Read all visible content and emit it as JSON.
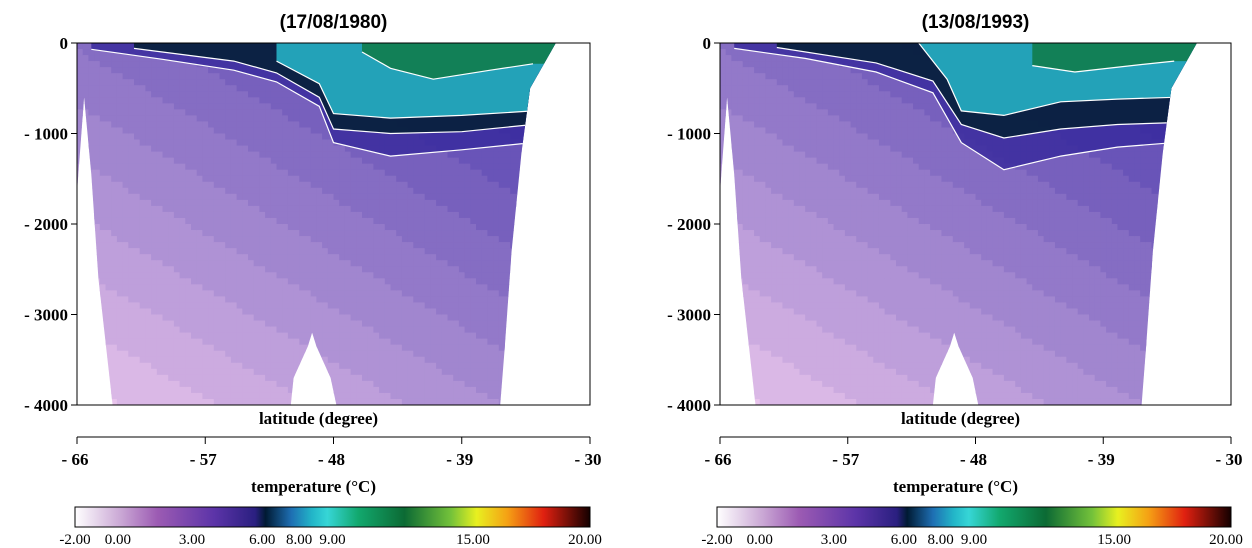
{
  "chart_data": [
    {
      "type": "heatmap",
      "title": "(17/08/1980)",
      "xlabel": "latitude (degree)",
      "ylabel": "",
      "x_ticks": [
        -66,
        -57,
        -48,
        -39,
        -30
      ],
      "x_tick_labels": [
        "- 66",
        "- 57",
        "- 48",
        "- 39",
        "- 30"
      ],
      "y_ticks": [
        0,
        1000,
        2000,
        3000,
        4000
      ],
      "y_tick_labels": [
        "0",
        "- 1000",
        "- 2000",
        "- 3000",
        "- 4000"
      ],
      "xlim": [
        -66,
        -30
      ],
      "ylim": [
        0,
        4000
      ],
      "colorbar": {
        "label": "temperature (°C)",
        "ticks": [
          -2,
          0,
          3,
          6,
          8,
          9,
          15,
          20
        ],
        "tick_labels": [
          "-2.00",
          "0.00",
          "3.00",
          "6.00",
          "8.00",
          "9.00",
          "15.00",
          "20.00"
        ]
      },
      "bottom_profile": [
        {
          "lat": -66,
          "depth": 1650
        },
        {
          "lat": -65.5,
          "depth": 600
        },
        {
          "lat": -65,
          "depth": 1450
        },
        {
          "lat": -64.5,
          "depth": 2600
        },
        {
          "lat": -63.5,
          "depth": 4000
        },
        {
          "lat": -51,
          "depth": 4000
        },
        {
          "lat": -50.8,
          "depth": 3700
        },
        {
          "lat": -49.8,
          "depth": 3350
        },
        {
          "lat": -49.5,
          "depth": 3200
        },
        {
          "lat": -49.2,
          "depth": 3350
        },
        {
          "lat": -48.2,
          "depth": 3700
        },
        {
          "lat": -47.8,
          "depth": 4000
        },
        {
          "lat": -36.3,
          "depth": 4000
        },
        {
          "lat": -36,
          "depth": 3400
        },
        {
          "lat": -35.5,
          "depth": 2300
        },
        {
          "lat": -34.8,
          "depth": 1200
        },
        {
          "lat": -34.2,
          "depth": 500
        },
        {
          "lat": -32.4,
          "depth": 0
        }
      ],
      "isotherm_depths": [
        {
          "temp": 3,
          "points": [
            {
              "lat": -65,
              "depth": 70
            },
            {
              "lat": -60,
              "depth": 180
            },
            {
              "lat": -55,
              "depth": 300
            },
            {
              "lat": -52,
              "depth": 430
            },
            {
              "lat": -49,
              "depth": 700
            },
            {
              "lat": -48,
              "depth": 1100
            },
            {
              "lat": -44,
              "depth": 1250
            },
            {
              "lat": -39,
              "depth": 1180
            },
            {
              "lat": -34,
              "depth": 1100
            }
          ]
        },
        {
          "temp": 6,
          "points": [
            {
              "lat": -62,
              "depth": 60
            },
            {
              "lat": -55,
              "depth": 200
            },
            {
              "lat": -52,
              "depth": 330
            },
            {
              "lat": -49,
              "depth": 600
            },
            {
              "lat": -48,
              "depth": 950
            },
            {
              "lat": -44,
              "depth": 1000
            },
            {
              "lat": -39,
              "depth": 980
            },
            {
              "lat": -34,
              "depth": 900
            }
          ]
        },
        {
          "temp": 8,
          "points": [
            {
              "lat": -52,
              "depth": 200
            },
            {
              "lat": -49,
              "depth": 450
            },
            {
              "lat": -48,
              "depth": 780
            },
            {
              "lat": -44,
              "depth": 830
            },
            {
              "lat": -39,
              "depth": 800
            },
            {
              "lat": -34,
              "depth": 750
            }
          ]
        },
        {
          "temp": 15,
          "points": [
            {
              "lat": -46,
              "depth": 100
            },
            {
              "lat": -44,
              "depth": 280
            },
            {
              "lat": -41,
              "depth": 400
            },
            {
              "lat": -37,
              "depth": 300
            },
            {
              "lat": -34,
              "depth": 230
            }
          ]
        }
      ]
    },
    {
      "type": "heatmap",
      "title": "(13/08/1993)",
      "xlabel": "latitude (degree)",
      "ylabel": "",
      "x_ticks": [
        -66,
        -57,
        -48,
        -39,
        -30
      ],
      "x_tick_labels": [
        "- 66",
        "- 57",
        "- 48",
        "- 39",
        "- 30"
      ],
      "y_ticks": [
        0,
        1000,
        2000,
        3000,
        4000
      ],
      "y_tick_labels": [
        "0",
        "- 1000",
        "- 2000",
        "- 3000",
        "- 4000"
      ],
      "xlim": [
        -66,
        -30
      ],
      "ylim": [
        0,
        4000
      ],
      "colorbar": {
        "label": "temperature (°C)",
        "ticks": [
          -2,
          0,
          3,
          6,
          8,
          9,
          15,
          20
        ],
        "tick_labels": [
          "-2.00",
          "0.00",
          "3.00",
          "6.00",
          "8.00",
          "9.00",
          "15.00",
          "20.00"
        ]
      },
      "bottom_profile": [
        {
          "lat": -66,
          "depth": 1650
        },
        {
          "lat": -65.5,
          "depth": 600
        },
        {
          "lat": -65,
          "depth": 1450
        },
        {
          "lat": -64.5,
          "depth": 2600
        },
        {
          "lat": -63.5,
          "depth": 4000
        },
        {
          "lat": -51,
          "depth": 4000
        },
        {
          "lat": -50.8,
          "depth": 3700
        },
        {
          "lat": -49.8,
          "depth": 3350
        },
        {
          "lat": -49.5,
          "depth": 3200
        },
        {
          "lat": -49.2,
          "depth": 3350
        },
        {
          "lat": -48.2,
          "depth": 3700
        },
        {
          "lat": -47.8,
          "depth": 4000
        },
        {
          "lat": -36.3,
          "depth": 4000
        },
        {
          "lat": -36,
          "depth": 3400
        },
        {
          "lat": -35.5,
          "depth": 2300
        },
        {
          "lat": -34.8,
          "depth": 1200
        },
        {
          "lat": -34.2,
          "depth": 500
        },
        {
          "lat": -32.4,
          "depth": 0
        }
      ],
      "isotherm_depths": [
        {
          "temp": 3,
          "points": [
            {
              "lat": -65,
              "depth": 60
            },
            {
              "lat": -60,
              "depth": 170
            },
            {
              "lat": -55,
              "depth": 320
            },
            {
              "lat": -51,
              "depth": 550
            },
            {
              "lat": -49,
              "depth": 1100
            },
            {
              "lat": -46,
              "depth": 1400
            },
            {
              "lat": -42,
              "depth": 1250
            },
            {
              "lat": -38,
              "depth": 1150
            },
            {
              "lat": -34,
              "depth": 1100
            }
          ]
        },
        {
          "temp": 6,
          "points": [
            {
              "lat": -62,
              "depth": 50
            },
            {
              "lat": -55,
              "depth": 220
            },
            {
              "lat": -51,
              "depth": 420
            },
            {
              "lat": -49,
              "depth": 900
            },
            {
              "lat": -46,
              "depth": 1050
            },
            {
              "lat": -42,
              "depth": 950
            },
            {
              "lat": -38,
              "depth": 900
            },
            {
              "lat": -34,
              "depth": 880
            }
          ]
        },
        {
          "temp": 8,
          "points": [
            {
              "lat": -52,
              "depth": 0
            },
            {
              "lat": -50,
              "depth": 400
            },
            {
              "lat": -49,
              "depth": 750
            },
            {
              "lat": -46,
              "depth": 800
            },
            {
              "lat": -42,
              "depth": 650
            },
            {
              "lat": -38,
              "depth": 620
            },
            {
              "lat": -34,
              "depth": 600
            }
          ]
        },
        {
          "temp": 15,
          "points": [
            {
              "lat": -44,
              "depth": 250
            },
            {
              "lat": -41,
              "depth": 320
            },
            {
              "lat": -37,
              "depth": 250
            },
            {
              "lat": -34,
              "depth": 200
            }
          ]
        }
      ]
    }
  ]
}
